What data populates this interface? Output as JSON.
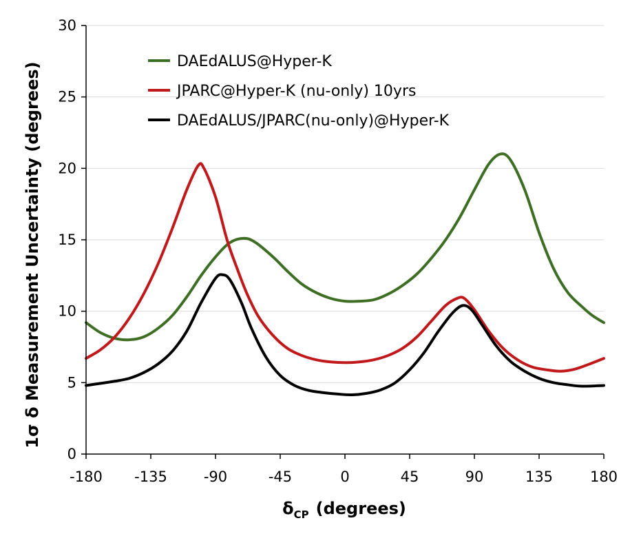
{
  "chart_data": {
    "type": "line",
    "xlabel": "δ",
    "xlabel_sub": "CP",
    "xlabel_unit": "(degrees)",
    "ylabel": "1σ δ Measurement Uncertainty (degrees)",
    "xlim": [
      -180,
      180
    ],
    "ylim": [
      0,
      30
    ],
    "x_ticks": [
      -180,
      -135,
      -90,
      -45,
      0,
      45,
      90,
      135,
      180
    ],
    "y_ticks": [
      0,
      5,
      10,
      15,
      20,
      25,
      30
    ],
    "grid": "horizontal",
    "legend_position": "top-left",
    "series": [
      {
        "name": "DAEdALUS@Hyper-K",
        "color": "#3e6e23",
        "points": [
          [
            -180,
            9.2
          ],
          [
            -170,
            8.5
          ],
          [
            -160,
            8.1
          ],
          [
            -150,
            8.0
          ],
          [
            -140,
            8.2
          ],
          [
            -130,
            8.8
          ],
          [
            -120,
            9.7
          ],
          [
            -110,
            11.0
          ],
          [
            -100,
            12.5
          ],
          [
            -90,
            13.8
          ],
          [
            -80,
            14.8
          ],
          [
            -70,
            15.1
          ],
          [
            -62,
            14.8
          ],
          [
            -50,
            13.8
          ],
          [
            -40,
            12.8
          ],
          [
            -30,
            11.9
          ],
          [
            -20,
            11.3
          ],
          [
            -10,
            10.9
          ],
          [
            0,
            10.7
          ],
          [
            10,
            10.7
          ],
          [
            20,
            10.8
          ],
          [
            30,
            11.2
          ],
          [
            40,
            11.8
          ],
          [
            50,
            12.6
          ],
          [
            60,
            13.7
          ],
          [
            70,
            15.0
          ],
          [
            80,
            16.6
          ],
          [
            90,
            18.5
          ],
          [
            100,
            20.3
          ],
          [
            108,
            21.0
          ],
          [
            115,
            20.6
          ],
          [
            125,
            18.5
          ],
          [
            135,
            15.5
          ],
          [
            145,
            13.0
          ],
          [
            155,
            11.3
          ],
          [
            165,
            10.3
          ],
          [
            172,
            9.7
          ],
          [
            180,
            9.2
          ]
        ]
      },
      {
        "name": "JPARC@Hyper-K (nu-only) 10yrs",
        "color": "#c0191b",
        "points": [
          [
            -180,
            6.7
          ],
          [
            -170,
            7.3
          ],
          [
            -160,
            8.2
          ],
          [
            -150,
            9.5
          ],
          [
            -140,
            11.2
          ],
          [
            -130,
            13.3
          ],
          [
            -120,
            15.8
          ],
          [
            -110,
            18.5
          ],
          [
            -102,
            20.2
          ],
          [
            -98,
            20.0
          ],
          [
            -90,
            18.0
          ],
          [
            -82,
            15.0
          ],
          [
            -75,
            13.0
          ],
          [
            -68,
            11.2
          ],
          [
            -60,
            9.6
          ],
          [
            -50,
            8.3
          ],
          [
            -40,
            7.4
          ],
          [
            -30,
            6.9
          ],
          [
            -20,
            6.6
          ],
          [
            -10,
            6.45
          ],
          [
            0,
            6.4
          ],
          [
            10,
            6.45
          ],
          [
            20,
            6.6
          ],
          [
            30,
            6.9
          ],
          [
            40,
            7.4
          ],
          [
            50,
            8.2
          ],
          [
            60,
            9.3
          ],
          [
            70,
            10.4
          ],
          [
            78,
            10.9
          ],
          [
            83,
            10.9
          ],
          [
            90,
            10.1
          ],
          [
            100,
            8.6
          ],
          [
            110,
            7.4
          ],
          [
            120,
            6.6
          ],
          [
            130,
            6.1
          ],
          [
            140,
            5.9
          ],
          [
            150,
            5.8
          ],
          [
            160,
            5.95
          ],
          [
            170,
            6.3
          ],
          [
            180,
            6.7
          ]
        ]
      },
      {
        "name": "DAEdALUS/JPARC(nu-only)@Hyper-K",
        "color": "#000000",
        "points": [
          [
            -180,
            4.8
          ],
          [
            -170,
            4.95
          ],
          [
            -160,
            5.1
          ],
          [
            -150,
            5.3
          ],
          [
            -140,
            5.7
          ],
          [
            -130,
            6.3
          ],
          [
            -120,
            7.2
          ],
          [
            -110,
            8.6
          ],
          [
            -100,
            10.6
          ],
          [
            -90,
            12.3
          ],
          [
            -85,
            12.55
          ],
          [
            -80,
            12.2
          ],
          [
            -72,
            10.6
          ],
          [
            -65,
            8.8
          ],
          [
            -55,
            6.8
          ],
          [
            -45,
            5.5
          ],
          [
            -35,
            4.8
          ],
          [
            -25,
            4.45
          ],
          [
            -15,
            4.3
          ],
          [
            -5,
            4.2
          ],
          [
            5,
            4.15
          ],
          [
            15,
            4.25
          ],
          [
            25,
            4.5
          ],
          [
            35,
            5.0
          ],
          [
            45,
            5.9
          ],
          [
            55,
            7.1
          ],
          [
            65,
            8.6
          ],
          [
            75,
            9.9
          ],
          [
            82,
            10.4
          ],
          [
            88,
            10.1
          ],
          [
            95,
            9.1
          ],
          [
            105,
            7.6
          ],
          [
            115,
            6.5
          ],
          [
            125,
            5.8
          ],
          [
            135,
            5.3
          ],
          [
            145,
            5.0
          ],
          [
            155,
            4.85
          ],
          [
            165,
            4.75
          ],
          [
            180,
            4.8
          ]
        ]
      }
    ]
  }
}
